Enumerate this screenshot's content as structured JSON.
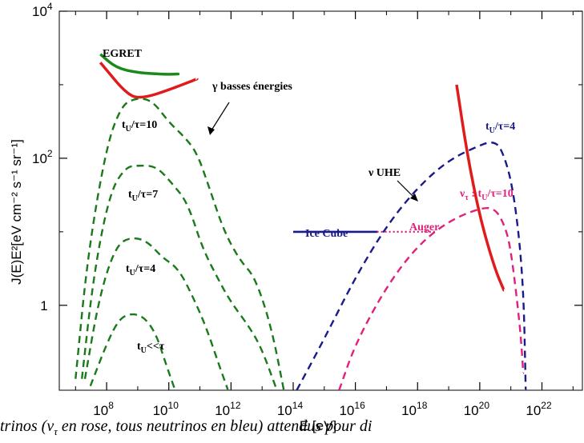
{
  "chart_data": {
    "type": "line",
    "x_scale": "log",
    "y_scale": "log",
    "xlim": [
      3000000.0,
      2e+23
    ],
    "ylim": [
      0.07,
      10000
    ],
    "xlabel": "E [eV]",
    "ylabel": "J(E)E²[eV cm⁻² s⁻¹ sr⁻¹]",
    "x_ticks": [
      {
        "value": 100000000.0,
        "base": "10",
        "exp": "8"
      },
      {
        "value": 10000000000.0,
        "base": "10",
        "exp": "10"
      },
      {
        "value": 1000000000000.0,
        "base": "10",
        "exp": "12"
      },
      {
        "value": 100000000000000.0,
        "base": "10",
        "exp": "14"
      },
      {
        "value": 1e+16,
        "base": "10",
        "exp": "16"
      },
      {
        "value": 1e+18,
        "base": "10",
        "exp": "18"
      },
      {
        "value": 1e+20,
        "base": "10",
        "exp": "20"
      },
      {
        "value": 1e+22,
        "base": "10",
        "exp": "22"
      }
    ],
    "y_ticks": [
      {
        "value": 1,
        "label": "1",
        "exp": ""
      },
      {
        "value": 100,
        "label": "10",
        "exp": "2"
      },
      {
        "value": 10000,
        "label": "10",
        "exp": "4"
      }
    ],
    "grid": false,
    "legend": "none",
    "series": [
      {
        "name": "EGRET",
        "color": "#1a8a1a",
        "style": "solid",
        "points": [
          [
            63000000.0,
            2600
          ],
          [
            200000000.0,
            1700
          ],
          [
            1000000000.0,
            1450
          ],
          [
            10000000000.0,
            1380
          ],
          [
            20000000000.0,
            1400
          ]
        ]
      },
      {
        "color": "#e01b1b",
        "style": "solid",
        "points": [
          [
            63000000.0,
            2000
          ],
          [
            500000000.0,
            700
          ],
          [
            1600000000.0,
            660
          ],
          [
            10000000000.0,
            850
          ],
          [
            80000000000.0,
            1200
          ]
        ]
      },
      {
        "color": "#1a7a1a",
        "style": "dashed",
        "points": [
          [
            10000000.0,
            0.1
          ],
          [
            25000000.0,
            5
          ],
          [
            100000000.0,
            150
          ],
          [
            300000000.0,
            520
          ],
          [
            800000000.0,
            650
          ],
          [
            2000000000.0,
            640
          ],
          [
            4000000000.0,
            520
          ],
          [
            10000000000.0,
            310
          ],
          [
            30000000000.0,
            200
          ],
          [
            80000000000.0,
            120
          ],
          [
            200000000000.0,
            40
          ],
          [
            600000000000.0,
            10
          ],
          [
            2000000000000.0,
            4
          ],
          [
            6000000000000.0,
            2.4
          ],
          [
            20000000000000.0,
            0.5
          ],
          [
            50000000000000.0,
            0.07
          ]
        ]
      },
      {
        "color": "#1a7a1a",
        "style": "dashed",
        "points": [
          [
            16000000.0,
            0.1
          ],
          [
            40000000.0,
            3
          ],
          [
            130000000.0,
            35
          ],
          [
            400000000.0,
            75
          ],
          [
            1000000000.0,
            80
          ],
          [
            4000000000.0,
            78
          ],
          [
            13000000000.0,
            45
          ],
          [
            40000000000.0,
            25
          ],
          [
            120000000000.0,
            6
          ],
          [
            400000000000.0,
            2.2
          ],
          [
            1000000000000.0,
            1.1
          ],
          [
            4000000000000.0,
            0.5
          ],
          [
            10000000000000.0,
            0.25
          ],
          [
            30000000000000.0,
            0.07
          ]
        ]
      },
      {
        "color": "#1a7a1a",
        "style": "dashed",
        "points": [
          [
            20000000.0,
            0.1
          ],
          [
            60000000.0,
            1.4
          ],
          [
            200000000.0,
            6.5
          ],
          [
            600000000.0,
            8.5
          ],
          [
            2000000000.0,
            7.5
          ],
          [
            6000000000.0,
            4.5
          ],
          [
            20000000000.0,
            3.2
          ],
          [
            60000000000.0,
            1.3
          ],
          [
            160000000000.0,
            0.5
          ],
          [
            400000000000.0,
            0.16
          ],
          [
            800000000000.0,
            0.07
          ]
        ]
      },
      {
        "color": "#1a7a1a",
        "style": "dashed",
        "points": [
          [
            30000000.0,
            0.08
          ],
          [
            100000000.0,
            0.3
          ],
          [
            250000000.0,
            0.65
          ],
          [
            600000000.0,
            0.78
          ],
          [
            1600000000.0,
            0.7
          ],
          [
            4000000000.0,
            0.4
          ],
          [
            8000000000.0,
            0.16
          ],
          [
            16000000000.0,
            0.07
          ]
        ]
      },
      {
        "color": "#1a1a8a",
        "style": "dashed",
        "points": [
          [
            130000000000000.0,
            0.07
          ],
          [
            1000000000000000.0,
            0.35
          ],
          [
            1e+16,
            2.4
          ],
          [
            1e+17,
            12
          ],
          [
            1e+18,
            40
          ],
          [
            1e+19,
            95
          ],
          [
            1e+20,
            150
          ],
          [
            2.5e+20,
            170
          ],
          [
            5e+20,
            140
          ],
          [
            1.2e+21,
            40
          ],
          [
            2.5e+21,
            2.5
          ],
          [
            3e+21,
            0.07
          ]
        ]
      },
      {
        "color": "#e0207a",
        "style": "dashed",
        "points": [
          [
            3000000000000000.0,
            0.07
          ],
          [
            1e+16,
            0.3
          ],
          [
            1e+17,
            1.8
          ],
          [
            1e+18,
            6.5
          ],
          [
            1e+19,
            14
          ],
          [
            1e+20,
            21
          ],
          [
            3e+20,
            21
          ],
          [
            6e+20,
            13
          ],
          [
            1e+21,
            6
          ],
          [
            2e+21,
            0.5
          ],
          [
            2.5e+21,
            0.12
          ]
        ]
      },
      {
        "name": "Ice Cube",
        "color": "#1a1a8a",
        "style": "solid",
        "points": [
          [
            100000000000000.0,
            10
          ],
          [
            5e+16,
            10
          ]
        ]
      },
      {
        "name": "Auger",
        "color": "#e0207a",
        "style": "dotted",
        "points": [
          [
            5e+16,
            10
          ],
          [
            4e+18,
            10
          ]
        ]
      },
      {
        "color": "#e01b1b",
        "style": "solid",
        "points": [
          [
            1.8e+19,
            1000
          ],
          [
            4e+19,
            110
          ],
          [
            1e+20,
            16
          ],
          [
            3e+20,
            3.2
          ],
          [
            6e+20,
            1.6
          ]
        ]
      }
    ]
  },
  "annotations": {
    "egret": "EGRET",
    "gamma": "γ basses énergies",
    "tu10_t": "t",
    "tu10_sub": "U",
    "tu10_rest": "/τ=10",
    "tu7_t": "t",
    "tu7_sub": "U",
    "tu7_rest": "/τ=7",
    "tu4_t": "t",
    "tu4_sub": "U",
    "tu4_rest": "/τ=4",
    "tull_t": "t",
    "tull_sub": "U",
    "tull_rest": "<<τ",
    "tu4b_t": "t",
    "tu4b_sub": "U",
    "tu4b_rest": "/τ=4",
    "nu_uhe": "ν UHE",
    "nutau_nu": "ν",
    "nutau_sub": "τ",
    "nutau_mid": " : t",
    "nutau_sub2": "U",
    "nutau_rest": "/τ=10",
    "icecube": "Ice Cube",
    "auger": "Auger"
  },
  "colors": {
    "green_label": "#1a6e1a",
    "navy_label": "#1a1a8a",
    "pink_label": "#e0207a",
    "red_label": "#e01b1b"
  },
  "caption": "trinos (ν_τ en rose, tous neutrinos en bleu) attendus pour di"
}
